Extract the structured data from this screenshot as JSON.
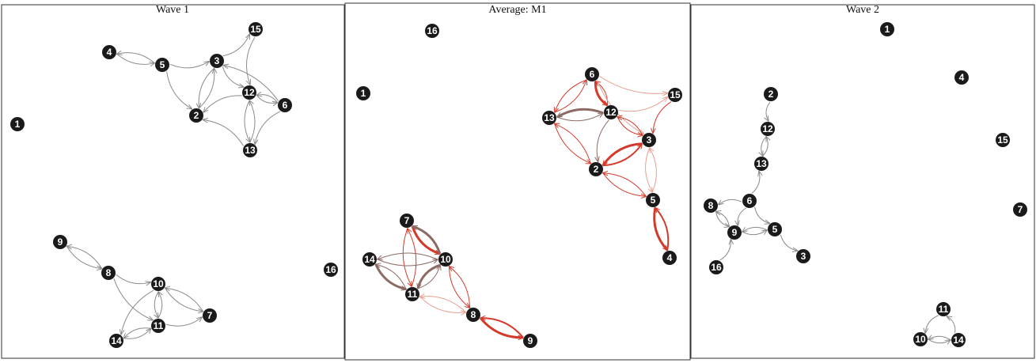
{
  "colors": {
    "node_fill": "#1a1a1a",
    "node_label": "#ffffff",
    "edge_grey": "#8a8a8a",
    "edge_red": "#d43a2a",
    "edge_light_red": "#e8a090",
    "edge_dark": "#8b6a64",
    "border": "#333333"
  },
  "panels": [
    {
      "title": "Wave 1",
      "nodes": [
        {
          "id": "1"
        },
        {
          "id": "2"
        },
        {
          "id": "3"
        },
        {
          "id": "4"
        },
        {
          "id": "5"
        },
        {
          "id": "6"
        },
        {
          "id": "7"
        },
        {
          "id": "8"
        },
        {
          "id": "9"
        },
        {
          "id": "10"
        },
        {
          "id": "11"
        },
        {
          "id": "12"
        },
        {
          "id": "13"
        },
        {
          "id": "14"
        },
        {
          "id": "15"
        },
        {
          "id": "16"
        }
      ],
      "edges": [
        {
          "from": "4",
          "to": "5"
        },
        {
          "from": "5",
          "to": "4"
        },
        {
          "from": "5",
          "to": "3"
        },
        {
          "from": "5",
          "to": "2"
        },
        {
          "from": "3",
          "to": "15"
        },
        {
          "from": "15",
          "to": "12"
        },
        {
          "from": "3",
          "to": "2"
        },
        {
          "from": "2",
          "to": "3"
        },
        {
          "from": "3",
          "to": "12"
        },
        {
          "from": "6",
          "to": "3"
        },
        {
          "from": "12",
          "to": "6"
        },
        {
          "from": "6",
          "to": "12"
        },
        {
          "from": "12",
          "to": "2"
        },
        {
          "from": "12",
          "to": "13"
        },
        {
          "from": "13",
          "to": "12"
        },
        {
          "from": "6",
          "to": "13"
        },
        {
          "from": "13",
          "to": "2"
        },
        {
          "from": "9",
          "to": "8"
        },
        {
          "from": "8",
          "to": "9"
        },
        {
          "from": "8",
          "to": "10"
        },
        {
          "from": "8",
          "to": "11"
        },
        {
          "from": "10",
          "to": "11"
        },
        {
          "from": "11",
          "to": "10"
        },
        {
          "from": "10",
          "to": "7"
        },
        {
          "from": "7",
          "to": "10"
        },
        {
          "from": "11",
          "to": "7"
        },
        {
          "from": "10",
          "to": "14"
        },
        {
          "from": "14",
          "to": "11"
        },
        {
          "from": "11",
          "to": "14"
        }
      ]
    },
    {
      "title": "Average: M1",
      "nodes": [
        {
          "id": "1"
        },
        {
          "id": "2"
        },
        {
          "id": "3"
        },
        {
          "id": "4"
        },
        {
          "id": "5"
        },
        {
          "id": "6"
        },
        {
          "id": "7"
        },
        {
          "id": "8"
        },
        {
          "id": "9"
        },
        {
          "id": "10"
        },
        {
          "id": "11"
        },
        {
          "id": "12"
        },
        {
          "id": "13"
        },
        {
          "id": "14"
        },
        {
          "id": "15"
        },
        {
          "id": "16"
        }
      ],
      "edges": [
        {
          "from": "6",
          "to": "12",
          "color": "red",
          "weight": 3
        },
        {
          "from": "12",
          "to": "6",
          "color": "red",
          "weight": 1
        },
        {
          "from": "6",
          "to": "13",
          "color": "red",
          "weight": 1
        },
        {
          "from": "13",
          "to": "6",
          "color": "red",
          "weight": 1
        },
        {
          "from": "12",
          "to": "13",
          "color": "dark",
          "weight": 3
        },
        {
          "from": "13",
          "to": "12",
          "color": "dark",
          "weight": 1
        },
        {
          "from": "6",
          "to": "15",
          "color": "lightred",
          "weight": 1
        },
        {
          "from": "6",
          "to": "3",
          "color": "lightred",
          "weight": 1
        },
        {
          "from": "12",
          "to": "15",
          "color": "lightred",
          "weight": 1
        },
        {
          "from": "15",
          "to": "3",
          "color": "red",
          "weight": 1
        },
        {
          "from": "12",
          "to": "3",
          "color": "red",
          "weight": 1
        },
        {
          "from": "3",
          "to": "12",
          "color": "red",
          "weight": 1
        },
        {
          "from": "3",
          "to": "2",
          "color": "red",
          "weight": 3
        },
        {
          "from": "2",
          "to": "3",
          "color": "red",
          "weight": 2
        },
        {
          "from": "13",
          "to": "2",
          "color": "red",
          "weight": 1
        },
        {
          "from": "2",
          "to": "13",
          "color": "red",
          "weight": 1
        },
        {
          "from": "12",
          "to": "2",
          "color": "dark",
          "weight": 1
        },
        {
          "from": "3",
          "to": "5",
          "color": "lightred",
          "weight": 1
        },
        {
          "from": "5",
          "to": "3",
          "color": "lightred",
          "weight": 1
        },
        {
          "from": "2",
          "to": "5",
          "color": "red",
          "weight": 1
        },
        {
          "from": "5",
          "to": "2",
          "color": "red",
          "weight": 1
        },
        {
          "from": "5",
          "to": "4",
          "color": "red",
          "weight": 3
        },
        {
          "from": "4",
          "to": "5",
          "color": "red",
          "weight": 2
        },
        {
          "from": "7",
          "to": "10",
          "color": "red",
          "weight": 3
        },
        {
          "from": "10",
          "to": "7",
          "color": "dark",
          "weight": 3
        },
        {
          "from": "7",
          "to": "11",
          "color": "red",
          "weight": 1
        },
        {
          "from": "11",
          "to": "7",
          "color": "red",
          "weight": 1
        },
        {
          "from": "14",
          "to": "10",
          "color": "dark",
          "weight": 1
        },
        {
          "from": "10",
          "to": "14",
          "color": "dark",
          "weight": 1
        },
        {
          "from": "14",
          "to": "11",
          "color": "dark",
          "weight": 3
        },
        {
          "from": "11",
          "to": "14",
          "color": "dark",
          "weight": 1
        },
        {
          "from": "10",
          "to": "11",
          "color": "dark",
          "weight": 3
        },
        {
          "from": "11",
          "to": "10",
          "color": "dark",
          "weight": 1
        },
        {
          "from": "8",
          "to": "11",
          "color": "lightred",
          "weight": 1
        },
        {
          "from": "11",
          "to": "8",
          "color": "lightred",
          "weight": 1
        },
        {
          "from": "8",
          "to": "10",
          "color": "red",
          "weight": 1
        },
        {
          "from": "10",
          "to": "8",
          "color": "red",
          "weight": 1
        },
        {
          "from": "8",
          "to": "9",
          "color": "red",
          "weight": 3
        },
        {
          "from": "9",
          "to": "8",
          "color": "red",
          "weight": 2
        }
      ]
    },
    {
      "title": "Wave 2",
      "nodes": [
        {
          "id": "1"
        },
        {
          "id": "2"
        },
        {
          "id": "3"
        },
        {
          "id": "4"
        },
        {
          "id": "5"
        },
        {
          "id": "6"
        },
        {
          "id": "7"
        },
        {
          "id": "8"
        },
        {
          "id": "9"
        },
        {
          "id": "10"
        },
        {
          "id": "11"
        },
        {
          "id": "12"
        },
        {
          "id": "13"
        },
        {
          "id": "14"
        },
        {
          "id": "15"
        },
        {
          "id": "16"
        }
      ],
      "edges": [
        {
          "from": "2",
          "to": "12"
        },
        {
          "from": "12",
          "to": "13"
        },
        {
          "from": "13",
          "to": "12"
        },
        {
          "from": "6",
          "to": "13"
        },
        {
          "from": "6",
          "to": "8"
        },
        {
          "from": "6",
          "to": "9"
        },
        {
          "from": "6",
          "to": "5"
        },
        {
          "from": "8",
          "to": "9"
        },
        {
          "from": "9",
          "to": "8"
        },
        {
          "from": "9",
          "to": "5"
        },
        {
          "from": "5",
          "to": "9"
        },
        {
          "from": "5",
          "to": "3"
        },
        {
          "from": "16",
          "to": "9"
        },
        {
          "from": "11",
          "to": "10"
        },
        {
          "from": "14",
          "to": "11"
        },
        {
          "from": "10",
          "to": "14"
        },
        {
          "from": "14",
          "to": "10"
        }
      ]
    }
  ]
}
